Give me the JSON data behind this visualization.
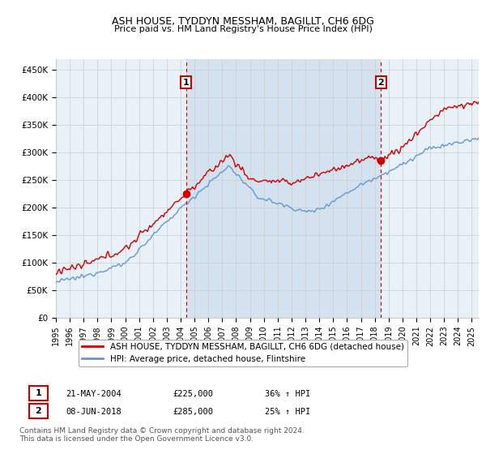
{
  "title": "ASH HOUSE, TYDDYN MESSHAM, BAGILLT, CH6 6DG",
  "subtitle": "Price paid vs. HM Land Registry's House Price Index (HPI)",
  "ylabel_ticks": [
    "£0",
    "£50K",
    "£100K",
    "£150K",
    "£200K",
    "£250K",
    "£300K",
    "£350K",
    "£400K",
    "£450K"
  ],
  "ytick_values": [
    0,
    50000,
    100000,
    150000,
    200000,
    250000,
    300000,
    350000,
    400000,
    450000
  ],
  "ylim": [
    0,
    470000
  ],
  "xlim_start": 1995.0,
  "xlim_end": 2025.5,
  "background_color": "#ffffff",
  "plot_bg_color": "#e8f0f8",
  "grid_color": "#cccccc",
  "sale1_x": 2004.39,
  "sale1_y": 225000,
  "sale2_x": 2018.44,
  "sale2_y": 285000,
  "legend_house_label": "ASH HOUSE, TYDDYN MESSHAM, BAGILLT, CH6 6DG (detached house)",
  "legend_hpi_label": "HPI: Average price, detached house, Flintshire",
  "annotation1_date": "21-MAY-2004",
  "annotation1_price": "£225,000",
  "annotation1_hpi": "36% ↑ HPI",
  "annotation2_date": "08-JUN-2018",
  "annotation2_price": "£285,000",
  "annotation2_hpi": "25% ↑ HPI",
  "footnote": "Contains HM Land Registry data © Crown copyright and database right 2024.\nThis data is licensed under the Open Government Licence v3.0.",
  "house_line_color": "#cc0000",
  "hpi_line_color": "#6699cc",
  "shade_color": "#c8d8e8",
  "vline_color": "#cc0000",
  "marker_box_color": "#cc0000",
  "xtick_years": [
    1995,
    1996,
    1997,
    1998,
    1999,
    2000,
    2001,
    2002,
    2003,
    2004,
    2005,
    2006,
    2007,
    2008,
    2009,
    2010,
    2011,
    2012,
    2013,
    2014,
    2015,
    2016,
    2017,
    2018,
    2019,
    2020,
    2021,
    2022,
    2023,
    2024,
    2025
  ]
}
